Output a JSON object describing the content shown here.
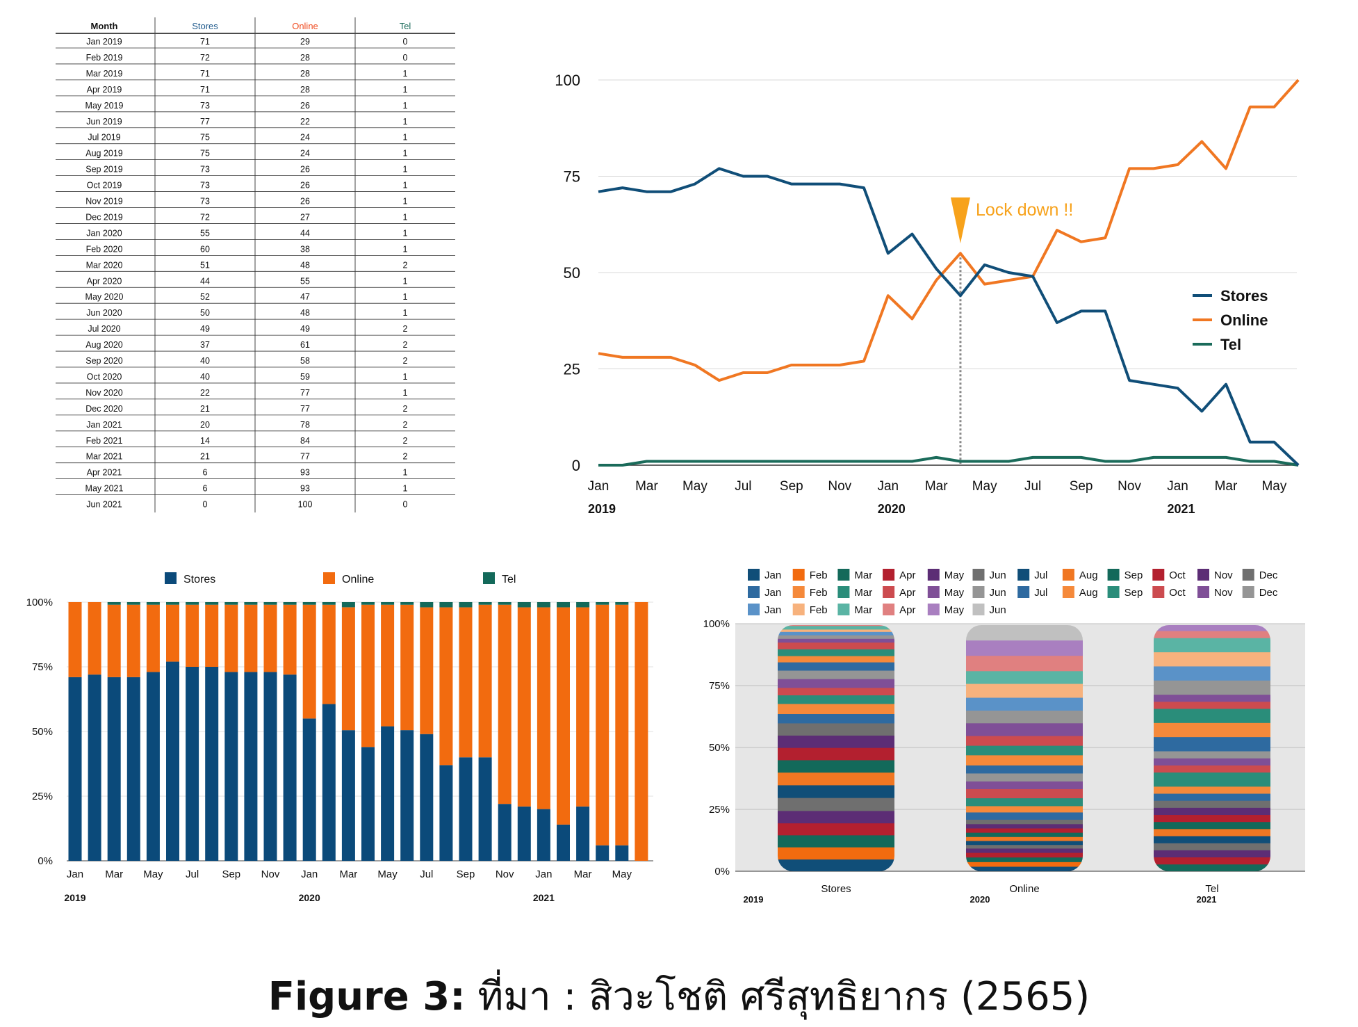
{
  "table": {
    "headers": [
      "Month",
      "Stores",
      "Online",
      "Tel"
    ],
    "header_colors": [
      "#111111",
      "#1f5a8c",
      "#f04e23",
      "#1a6b5a"
    ],
    "rows": [
      [
        "Jan 2019",
        "71",
        "29",
        "0"
      ],
      [
        "Feb 2019",
        "72",
        "28",
        "0"
      ],
      [
        "Mar 2019",
        "71",
        "28",
        "1"
      ],
      [
        "Apr 2019",
        "71",
        "28",
        "1"
      ],
      [
        "May 2019",
        "73",
        "26",
        "1"
      ],
      [
        "Jun 2019",
        "77",
        "22",
        "1"
      ],
      [
        "Jul 2019",
        "75",
        "24",
        "1"
      ],
      [
        "Aug 2019",
        "75",
        "24",
        "1"
      ],
      [
        "Sep 2019",
        "73",
        "26",
        "1"
      ],
      [
        "Oct 2019",
        "73",
        "26",
        "1"
      ],
      [
        "Nov 2019",
        "73",
        "26",
        "1"
      ],
      [
        "Dec 2019",
        "72",
        "27",
        "1"
      ],
      [
        "Jan 2020",
        "55",
        "44",
        "1"
      ],
      [
        "Feb 2020",
        "60",
        "38",
        "1"
      ],
      [
        "Mar 2020",
        "51",
        "48",
        "2"
      ],
      [
        "Apr 2020",
        "44",
        "55",
        "1"
      ],
      [
        "May 2020",
        "52",
        "47",
        "1"
      ],
      [
        "Jun 2020",
        "50",
        "48",
        "1"
      ],
      [
        "Jul 2020",
        "49",
        "49",
        "2"
      ],
      [
        "Aug 2020",
        "37",
        "61",
        "2"
      ],
      [
        "Sep 2020",
        "40",
        "58",
        "2"
      ],
      [
        "Oct 2020",
        "40",
        "59",
        "1"
      ],
      [
        "Nov 2020",
        "22",
        "77",
        "1"
      ],
      [
        "Dec 2020",
        "21",
        "77",
        "2"
      ],
      [
        "Jan 2021",
        "20",
        "78",
        "2"
      ],
      [
        "Feb 2021",
        "14",
        "84",
        "2"
      ],
      [
        "Mar 2021",
        "21",
        "77",
        "2"
      ],
      [
        "Apr 2021",
        "6",
        "93",
        "1"
      ],
      [
        "May 2021",
        "6",
        "93",
        "1"
      ],
      [
        "Jun 2021",
        "0",
        "100",
        "0"
      ]
    ]
  },
  "chart_data": [
    {
      "type": "line",
      "x": [
        "Jan 2019",
        "Feb 2019",
        "Mar 2019",
        "Apr 2019",
        "May 2019",
        "Jun 2019",
        "Jul 2019",
        "Aug 2019",
        "Sep 2019",
        "Oct 2019",
        "Nov 2019",
        "Dec 2019",
        "Jan 2020",
        "Feb 2020",
        "Mar 2020",
        "Apr 2020",
        "May 2020",
        "Jun 2020",
        "Jul 2020",
        "Aug 2020",
        "Sep 2020",
        "Oct 2020",
        "Nov 2020",
        "Dec 2020",
        "Jan 2021",
        "Feb 2021",
        "Mar 2021",
        "Apr 2021",
        "May 2021",
        "Jun 2021"
      ],
      "tick_labels": [
        "Jan",
        "Mar",
        "May",
        "Jul",
        "Sep",
        "Nov",
        "Jan",
        "Mar",
        "May",
        "Jul",
        "Sep",
        "Nov",
        "Jan",
        "Mar",
        "May"
      ],
      "year_labels": [
        "2019",
        "2020",
        "2021"
      ],
      "series": [
        {
          "name": "Stores",
          "color": "#104e78",
          "values": [
            71,
            72,
            71,
            71,
            73,
            77,
            75,
            75,
            73,
            73,
            73,
            72,
            55,
            60,
            51,
            44,
            52,
            50,
            49,
            37,
            40,
            40,
            22,
            21,
            20,
            14,
            21,
            6,
            6,
            0
          ]
        },
        {
          "name": "Online",
          "color": "#f07722",
          "values": [
            29,
            28,
            28,
            28,
            26,
            22,
            24,
            24,
            26,
            26,
            26,
            27,
            44,
            38,
            48,
            55,
            47,
            48,
            49,
            61,
            58,
            59,
            77,
            77,
            78,
            84,
            77,
            93,
            93,
            100
          ]
        },
        {
          "name": "Tel",
          "color": "#1a6b5a",
          "values": [
            0,
            0,
            1,
            1,
            1,
            1,
            1,
            1,
            1,
            1,
            1,
            1,
            1,
            1,
            2,
            1,
            1,
            1,
            2,
            2,
            2,
            1,
            1,
            2,
            2,
            2,
            2,
            1,
            1,
            0
          ]
        }
      ],
      "ylim": [
        0,
        100
      ],
      "yticks": [
        "0",
        "25",
        "50",
        "75",
        "100"
      ],
      "grid": true,
      "legend": "right",
      "annotation": {
        "text": "Lock down !!",
        "x": "Apr 2020",
        "color": "#f7a21b"
      }
    },
    {
      "type": "bar",
      "stacked": "percent",
      "tick_labels": [
        "Jan",
        "Mar",
        "May",
        "Jul",
        "Sep",
        "Nov",
        "Jan",
        "Mar",
        "May",
        "Jul",
        "Sep",
        "Nov",
        "Jan",
        "Mar",
        "May"
      ],
      "year_labels": [
        "2019",
        "2020",
        "2021"
      ],
      "series_names": [
        "Stores",
        "Online",
        "Tel"
      ],
      "colors": [
        "#0b4a7a",
        "#f26b0f",
        "#13695a"
      ],
      "yticks": [
        "0%",
        "25%",
        "50%",
        "75%",
        "100%"
      ],
      "legend": "top"
    },
    {
      "type": "bar",
      "stacked": "percent",
      "categories": [
        "Stores",
        "Online",
        "Tel"
      ],
      "year_labels": [
        "2019",
        "2020",
        "2021"
      ],
      "yticks": [
        "0%",
        "25%",
        "50%",
        "75%",
        "100%"
      ],
      "legend_rows": [
        [
          "Jan",
          "Feb",
          "Mar",
          "Apr",
          "May",
          "Jun",
          "Jul",
          "Aug",
          "Sep",
          "Oct",
          "Nov",
          "Dec"
        ],
        [
          "Jan",
          "Feb",
          "Mar",
          "Apr",
          "May",
          "Jun",
          "Jul",
          "Aug",
          "Sep",
          "Oct",
          "Nov",
          "Dec"
        ],
        [
          "Jan",
          "Feb",
          "Mar",
          "Apr",
          "May",
          "Jun"
        ]
      ],
      "legend_colors": [
        [
          "#104e78",
          "#f26b0f",
          "#13695a",
          "#b3202f",
          "#5c2d75",
          "#6f6f6f",
          "#104e78",
          "#f07722",
          "#13695a",
          "#b3202f",
          "#5c2d75",
          "#6f6f6f"
        ],
        [
          "#2e6aa0",
          "#f5893a",
          "#2a8d7a",
          "#cc4b4f",
          "#7f4f97",
          "#959595",
          "#2e6aa0",
          "#f5893a",
          "#2a8d7a",
          "#cc4b4f",
          "#7f4f97",
          "#959595"
        ],
        [
          "#5a92c8",
          "#f7b27d",
          "#5ab4a4",
          "#e08080",
          "#a97fc0",
          "#c0c0c0"
        ]
      ],
      "legend": "top"
    }
  ],
  "caption": {
    "bold": "Figure 3:",
    "rest": " ที่มา : สิวะโชติ ศรีสุทธิยากร (2565)"
  }
}
